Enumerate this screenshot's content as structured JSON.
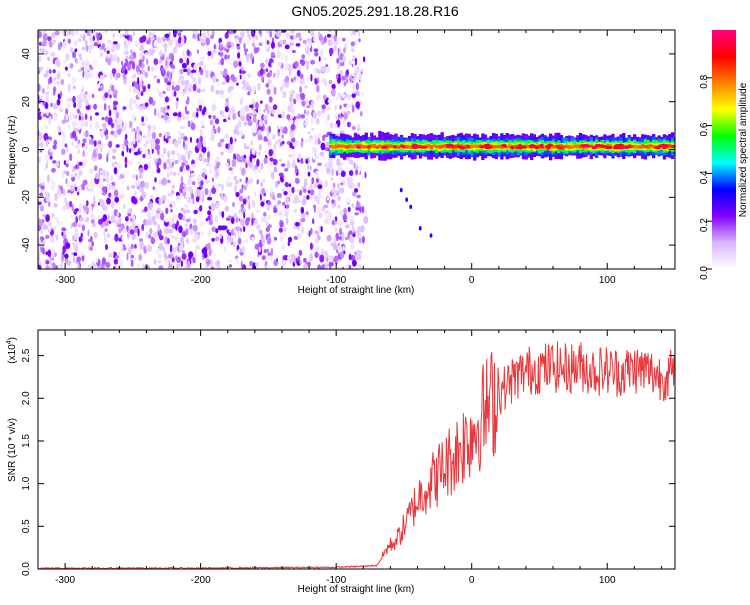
{
  "figure": {
    "title": "GN05.2025.291.18.28.R16"
  },
  "chart_data": [
    {
      "type": "heatmap",
      "xlabel": "Height of straight line (km)",
      "ylabel": "Frequency (Hz)",
      "xlim": [
        -320,
        150
      ],
      "ylim": [
        -50,
        50
      ],
      "x_ticks": [
        -300,
        -200,
        -100,
        0,
        100
      ],
      "y_ticks": [
        -40,
        -20,
        0,
        20,
        40
      ],
      "colorbar": {
        "label": "Normalized spectral amplitude",
        "range": [
          0,
          1
        ],
        "ticks": [
          0.0,
          0.2,
          0.4,
          0.6,
          0.8
        ],
        "colors": [
          "#ffffff",
          "#d9b3ff",
          "#8000ff",
          "#0000ff",
          "#00ffff",
          "#00ff00",
          "#ffff00",
          "#ff8000",
          "#ff0000",
          "#ff0080"
        ]
      },
      "regions": [
        {
          "x_range": [
            -320,
            -82
          ],
          "y_range": [
            -50,
            50
          ],
          "level": [
            0.02,
            0.2
          ],
          "note_color": "noise"
        },
        {
          "x_range": [
            -105,
            150
          ],
          "y_center": 1.2,
          "y_halfwidth": 4,
          "level": [
            0.4,
            1.0
          ],
          "note_color": "signal"
        }
      ],
      "streak_points": [
        [
          -52,
          -17
        ],
        [
          -48,
          -21
        ],
        [
          -45,
          -24
        ],
        [
          -38,
          -33
        ],
        [
          -30,
          -36
        ]
      ]
    },
    {
      "type": "line",
      "xlabel": "Height of straight line (km)",
      "ylabel": "SNR (10 * v/v)",
      "y_multiplier": "(x10",
      "y_multiplier_exp": "4",
      "xlim": [
        -320,
        150
      ],
      "ylim": [
        0,
        2.8
      ],
      "x_ticks": [
        -300,
        -200,
        -100,
        0,
        100
      ],
      "y_ticks": [
        0.0,
        0.5,
        1.0,
        1.5,
        2.0,
        2.5
      ],
      "line_color": "#e8383d",
      "series": [
        {
          "x": [
            -320,
            -200,
            -100,
            -70,
            -62,
            -55,
            -48,
            -42,
            -35,
            -28,
            -20,
            -12,
            -5,
            0,
            5,
            10,
            15,
            20,
            30,
            40,
            50,
            60,
            70,
            80,
            90,
            100,
            110,
            120,
            130,
            140,
            150
          ],
          "y": [
            0.01,
            0.01,
            0.02,
            0.04,
            0.25,
            0.35,
            0.55,
            0.75,
            0.95,
            1.05,
            1.2,
            1.35,
            1.5,
            1.6,
            1.72,
            1.85,
            1.95,
            2.05,
            2.22,
            2.32,
            2.35,
            2.37,
            2.35,
            2.38,
            2.32,
            2.33,
            2.3,
            2.35,
            2.32,
            2.25,
            2.3
          ]
        }
      ]
    }
  ]
}
